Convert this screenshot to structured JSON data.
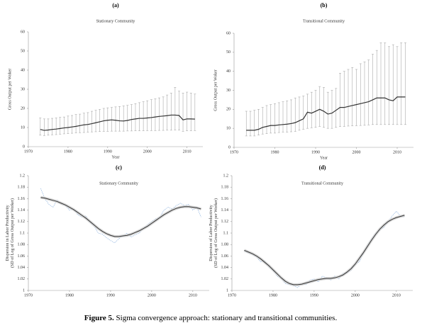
{
  "caption": {
    "label": "Figure 5.",
    "text": "Sigma convergence approach: stationary and transitional communities."
  },
  "chart_data": [
    {
      "type": "errorbar",
      "panel": "(a)",
      "title": "Stationary Community",
      "xlabel": "Year",
      "ylabel": [
        "Gross Output per Woker"
      ],
      "x": [
        1973,
        1974,
        1975,
        1976,
        1977,
        1978,
        1979,
        1980,
        1981,
        1982,
        1983,
        1984,
        1985,
        1986,
        1987,
        1988,
        1989,
        1990,
        1991,
        1992,
        1993,
        1994,
        1995,
        1996,
        1997,
        1998,
        1999,
        2000,
        2001,
        2002,
        2003,
        2004,
        2005,
        2006,
        2007,
        2008,
        2009,
        2010,
        2011,
        2012
      ],
      "xlim": [
        1970,
        2014
      ],
      "xticks": [
        1970,
        1980,
        1990,
        2000,
        2010
      ],
      "ylim": [
        0,
        60
      ],
      "yticks": [
        0,
        10,
        20,
        30,
        40,
        50,
        60
      ],
      "series": [
        {
          "color": "#333333",
          "values": [
            9,
            8.5,
            8.7,
            9,
            9.2,
            9.5,
            9.8,
            10,
            10.3,
            10.6,
            11,
            11.4,
            11.6,
            12,
            12.5,
            13,
            13.5,
            13.8,
            14,
            13.8,
            13.5,
            13.4,
            13.7,
            14.2,
            14.5,
            14.8,
            14.8,
            15,
            15.2,
            15.5,
            15.8,
            16,
            16.2,
            16.5,
            16.5,
            16.3,
            14,
            14.5,
            14.5,
            14.4
          ],
          "low": [
            6,
            5.8,
            6,
            6.2,
            6.3,
            6.5,
            6.7,
            6.8,
            7,
            7.2,
            7.3,
            7.4,
            7.5,
            7.7,
            7.8,
            7.9,
            8,
            8,
            8.1,
            8.1,
            8.1,
            8.1,
            8.2,
            8.2,
            8.3,
            8.3,
            8.3,
            8.4,
            8.4,
            8.4,
            8.5,
            8.5,
            8.6,
            8.6,
            8.7,
            8.7,
            8,
            8.3,
            8.3,
            8.4
          ],
          "high": [
            15,
            14.5,
            14.5,
            14.8,
            15,
            15.3,
            15.5,
            16,
            16.3,
            16.8,
            17,
            17.5,
            17.8,
            18.5,
            19,
            19.5,
            20,
            20.3,
            20.5,
            20.8,
            21,
            21.3,
            21.6,
            22,
            22.5,
            23,
            23.5,
            24,
            24.6,
            25,
            25.5,
            26,
            27,
            28,
            31,
            29,
            28,
            28.5,
            28,
            27.5
          ]
        }
      ]
    },
    {
      "type": "errorbar",
      "panel": "(b)",
      "title": "Transitional Community",
      "xlabel": "Year",
      "ylabel": [
        "Gross Output per Woker"
      ],
      "x": [
        1973,
        1974,
        1975,
        1976,
        1977,
        1978,
        1979,
        1980,
        1981,
        1982,
        1983,
        1984,
        1985,
        1986,
        1987,
        1988,
        1989,
        1990,
        1991,
        1992,
        1993,
        1994,
        1995,
        1996,
        1997,
        1998,
        1999,
        2000,
        2001,
        2002,
        2003,
        2004,
        2005,
        2006,
        2007,
        2008,
        2009,
        2010,
        2011,
        2012
      ],
      "xlim": [
        1970,
        2014
      ],
      "xticks": [
        1970,
        1980,
        1990,
        2000,
        2010
      ],
      "ylim": [
        0,
        60
      ],
      "yticks": [
        0,
        10,
        20,
        30,
        40,
        50,
        60
      ],
      "series": [
        {
          "color": "#333333",
          "values": [
            9,
            9,
            9,
            9.5,
            10.5,
            11,
            11.5,
            11.5,
            11.8,
            12,
            12.2,
            12.5,
            13,
            14,
            15,
            18.5,
            18,
            19,
            20,
            19,
            17.5,
            18,
            19.5,
            21,
            21,
            21.5,
            22,
            22.5,
            23,
            23.5,
            24,
            25,
            26,
            26,
            26,
            25,
            24.5,
            26.5,
            26.5,
            26.5
          ],
          "low": [
            6,
            6,
            6,
            6.5,
            7,
            7.2,
            7.5,
            7.5,
            7.8,
            8,
            8,
            8.2,
            8.4,
            9,
            9.5,
            10,
            10.3,
            10.5,
            11,
            10.5,
            10,
            10,
            10.5,
            11,
            11,
            11.2,
            11.3,
            11.4,
            11.5,
            11.6,
            11.8,
            12,
            12,
            12,
            12,
            12,
            12,
            12,
            12,
            12
          ],
          "high": [
            19,
            19,
            19.5,
            20,
            21,
            22,
            22.5,
            23,
            23.5,
            24,
            24.5,
            25,
            26,
            26.5,
            27,
            28,
            29,
            30,
            32,
            31.5,
            29,
            30,
            31,
            39,
            40,
            41,
            42,
            41,
            44,
            45,
            46,
            49,
            51,
            55,
            55,
            53,
            54,
            53,
            55,
            55
          ]
        }
      ]
    },
    {
      "type": "line",
      "panel": "(c)",
      "title": "Stationary Community",
      "ylabel": [
        "Dispersion in Labor Productivity",
        "(SD of Log of Gross Output per Worker)"
      ],
      "x": [
        1973,
        1974,
        1975,
        1976,
        1977,
        1978,
        1979,
        1980,
        1981,
        1982,
        1983,
        1984,
        1985,
        1986,
        1987,
        1988,
        1989,
        1990,
        1991,
        1992,
        1993,
        1994,
        1995,
        1996,
        1997,
        1998,
        1999,
        2000,
        2001,
        2002,
        2003,
        2004,
        2005,
        2006,
        2007,
        2008,
        2009,
        2010,
        2011,
        2012
      ],
      "xlim": [
        1970,
        2014
      ],
      "xticks": [
        1970,
        1980,
        1990,
        2000,
        2010
      ],
      "ylim": [
        1,
        1.2
      ],
      "yticks": [
        1,
        1.02,
        1.04,
        1.06,
        1.08,
        1.1,
        1.12,
        1.14,
        1.16,
        1.18,
        1.2
      ],
      "series": [
        {
          "color": "#8fb4e0",
          "dashed": true,
          "values": [
            1.178,
            1.16,
            1.15,
            1.145,
            1.158,
            1.15,
            1.148,
            1.14,
            1.142,
            1.132,
            1.128,
            1.13,
            1.118,
            1.112,
            1.1,
            1.098,
            1.092,
            1.087,
            1.083,
            1.09,
            1.095,
            1.1,
            1.093,
            1.097,
            1.1,
            1.108,
            1.115,
            1.12,
            1.125,
            1.128,
            1.14,
            1.145,
            1.142,
            1.148,
            1.152,
            1.148,
            1.15,
            1.14,
            1.145,
            1.128
          ]
        },
        {
          "color": "#333333",
          "dashed": false,
          "values": [
            1.162,
            1.161,
            1.159,
            1.157,
            1.155,
            1.152,
            1.149,
            1.145,
            1.141,
            1.136,
            1.131,
            1.126,
            1.12,
            1.114,
            1.108,
            1.103,
            1.099,
            1.096,
            1.094,
            1.094,
            1.095,
            1.096,
            1.098,
            1.101,
            1.104,
            1.108,
            1.112,
            1.117,
            1.122,
            1.127,
            1.132,
            1.136,
            1.14,
            1.143,
            1.145,
            1.146,
            1.146,
            1.145,
            1.144,
            1.142
          ]
        }
      ]
    },
    {
      "type": "line",
      "panel": "(d)",
      "title": "Transitional Community",
      "ylabel": [
        "Dispersion of Labor Productivity",
        "(SD of Log of Gross Output per Worker)"
      ],
      "x": [
        1973,
        1974,
        1975,
        1976,
        1977,
        1978,
        1979,
        1980,
        1981,
        1982,
        1983,
        1984,
        1985,
        1986,
        1987,
        1988,
        1989,
        1990,
        1991,
        1992,
        1993,
        1994,
        1995,
        1996,
        1997,
        1998,
        1999,
        2000,
        2001,
        2002,
        2003,
        2004,
        2005,
        2006,
        2007,
        2008,
        2009,
        2010,
        2011,
        2012
      ],
      "xlim": [
        1970,
        2014
      ],
      "xticks": [
        1970,
        1980,
        1990,
        2000,
        2010
      ],
      "ylim": [
        1,
        1.2
      ],
      "yticks": [
        1,
        1.02,
        1.04,
        1.06,
        1.08,
        1.1,
        1.12,
        1.14,
        1.16,
        1.18,
        1.2
      ],
      "series": [
        {
          "color": "#8fb4e0",
          "dashed": true,
          "values": [
            1.068,
            1.065,
            1.062,
            1.058,
            1.05,
            1.052,
            1.04,
            1.035,
            1.025,
            1.02,
            1.012,
            1.01,
            1.008,
            1.005,
            1.012,
            1.01,
            1.018,
            1.02,
            1.015,
            1.025,
            1.022,
            1.018,
            1.025,
            1.02,
            1.03,
            1.03,
            1.035,
            1.045,
            1.05,
            1.065,
            1.08,
            1.09,
            1.1,
            1.105,
            1.11,
            1.12,
            1.13,
            1.138,
            1.13,
            1.128
          ]
        },
        {
          "color": "#333333",
          "dashed": false,
          "values": [
            1.07,
            1.067,
            1.064,
            1.06,
            1.055,
            1.049,
            1.043,
            1.036,
            1.029,
            1.022,
            1.016,
            1.012,
            1.01,
            1.01,
            1.011,
            1.013,
            1.015,
            1.017,
            1.019,
            1.02,
            1.021,
            1.021,
            1.022,
            1.024,
            1.027,
            1.032,
            1.038,
            1.046,
            1.056,
            1.066,
            1.077,
            1.088,
            1.098,
            1.107,
            1.114,
            1.12,
            1.124,
            1.127,
            1.129,
            1.131
          ]
        }
      ]
    }
  ]
}
